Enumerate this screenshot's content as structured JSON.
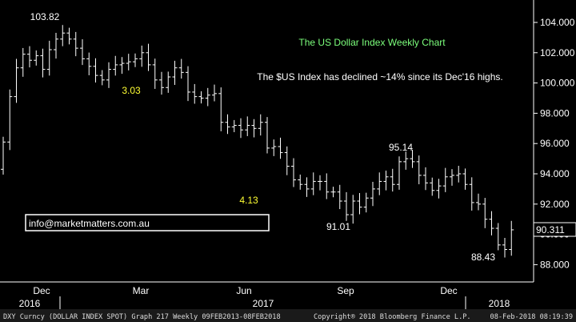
{
  "chart_data": {
    "type": "ohlc",
    "title": "The US Dollar Index Weekly Chart",
    "subtitle": "The $US Index has declined ~14% since its Dec'16 highs.",
    "xlabel": "",
    "ylabel": "",
    "ylim": [
      87,
      105
    ],
    "grid": false,
    "y_ticks": [
      "104.000",
      "102.000",
      "100.000",
      "98.000",
      "96.000",
      "94.000",
      "92.000",
      "90.000",
      "88.000"
    ],
    "y_tick_values": [
      104,
      102,
      100,
      98,
      96,
      94,
      92,
      90,
      88
    ],
    "x_month_labels": [
      "Dec",
      "Mar",
      "Jun",
      "Sep",
      "Dec"
    ],
    "x_year_labels": [
      "2016",
      "2017",
      "2018"
    ],
    "last_price": "90.311",
    "annotations": [
      {
        "text": "103.82",
        "color": "#ffffff"
      },
      {
        "text": "3.03",
        "color": "#ffff33"
      },
      {
        "text": "91.01",
        "color": "#ffffff"
      },
      {
        "text": "4.13",
        "color": "#ffff33"
      },
      {
        "text": "95.14",
        "color": "#ffffff"
      },
      {
        "text": "88.43",
        "color": "#ffffff"
      }
    ],
    "weekly_close": [
      96.1,
      99.1,
      101.0,
      101.9,
      101.5,
      101.8,
      100.9,
      102.2,
      102.9,
      103.3,
      102.9,
      102.3,
      101.6,
      101.1,
      100.5,
      100.2,
      100.9,
      101.2,
      101.3,
      101.4,
      101.6,
      102.0,
      101.2,
      100.2,
      99.7,
      100.4,
      101.0,
      100.7,
      99.4,
      99.1,
      99.0,
      99.2,
      99.3,
      97.4,
      97.1,
      97.2,
      96.9,
      97.2,
      97.0,
      97.4,
      95.7,
      95.8,
      95.4,
      94.5,
      93.6,
      93.3,
      93.0,
      93.5,
      93.5,
      92.8,
      92.8,
      92.2,
      91.3,
      92.2,
      91.8,
      92.4,
      93.0,
      93.5,
      93.8,
      93.3,
      94.8,
      95.0,
      94.8,
      93.9,
      93.4,
      92.9,
      93.2,
      93.8,
      93.9,
      94.0,
      93.3,
      92.1,
      92.0,
      91.0,
      90.4,
      89.3,
      89.0,
      90.3
    ],
    "colors": {
      "background": "#000000",
      "bars": "#ffffff",
      "title": "#7cff7c",
      "highlight": "#ffff33",
      "panel": "#1a1a1a"
    }
  },
  "contact": {
    "email": "info@marketmatters.com.au"
  },
  "footer": {
    "left": "DXY Curncy (DOLLAR INDEX SPOT) Graph 217  Weekly 09FEB2013-08FEB2018",
    "center": "Copyright® 2018 Bloomberg Finance L.P.",
    "right": "08-Feb-2018 08:19:39"
  }
}
